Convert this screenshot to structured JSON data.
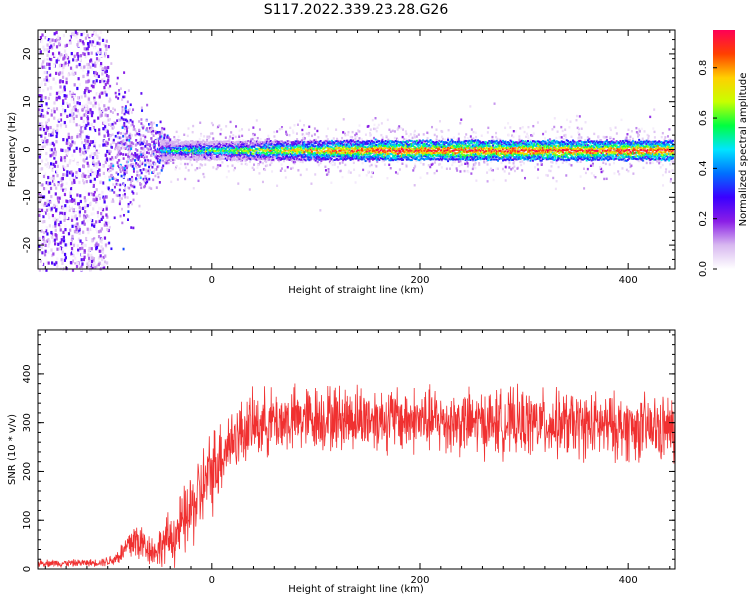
{
  "title": "S117.2022.339.23.28.G26",
  "chart_data": [
    {
      "type": "heatmap",
      "xlabel": "Height of straight line (km)",
      "ylabel": "Frequency (Hz)",
      "xlim": [
        -167,
        445
      ],
      "ylim": [
        -25,
        25
      ],
      "x_ticks": [
        0,
        200,
        400
      ],
      "y_ticks": [
        -20,
        -10,
        0,
        10,
        20
      ],
      "grid": false,
      "colorbar": {
        "label": "Normalized spectral amplitude",
        "range": [
          0,
          0.95
        ],
        "ticks": [
          "0.0",
          "0.2",
          "0.4",
          "0.6",
          "0.8"
        ],
        "colors": [
          "#ffffff",
          "#d8b8f0",
          "#8a1ee6",
          "#3a00ff",
          "#0070ff",
          "#00e5ff",
          "#00ff40",
          "#c8ff00",
          "#ffd000",
          "#ff4000",
          "#ff0055"
        ]
      },
      "features": {
        "noise_region_x": [
          -167,
          -100
        ],
        "tone_frequency_hz": 0,
        "tone_transition_x": [
          -100,
          -40
        ]
      }
    },
    {
      "type": "line",
      "xlabel": "Height of straight line (km)",
      "ylabel": "SNR (10 * v/v)",
      "xlim": [
        -167,
        445
      ],
      "ylim": [
        0,
        490
      ],
      "x_ticks": [
        0,
        200,
        400
      ],
      "y_ticks": [
        0,
        100,
        200,
        300,
        400
      ],
      "grid": false,
      "series": [
        {
          "color": "#f03030",
          "x": [
            -167,
            -140,
            -110,
            -95,
            -85,
            -75,
            -65,
            -55,
            -45,
            -35,
            -25,
            -15,
            -5,
            5,
            15,
            25,
            35,
            50,
            75,
            100,
            150,
            200,
            250,
            300,
            350,
            400,
            445
          ],
          "y": [
            12,
            12,
            13,
            18,
            35,
            60,
            50,
            35,
            55,
            70,
            100,
            140,
            180,
            220,
            255,
            275,
            290,
            300,
            305,
            310,
            310,
            305,
            300,
            300,
            295,
            290,
            285
          ],
          "spread": [
            6,
            6,
            6,
            10,
            20,
            40,
            30,
            25,
            40,
            50,
            60,
            70,
            70,
            70,
            60,
            55,
            55,
            55,
            55,
            55,
            55,
            55,
            55,
            55,
            55,
            55,
            55
          ]
        }
      ]
    }
  ]
}
